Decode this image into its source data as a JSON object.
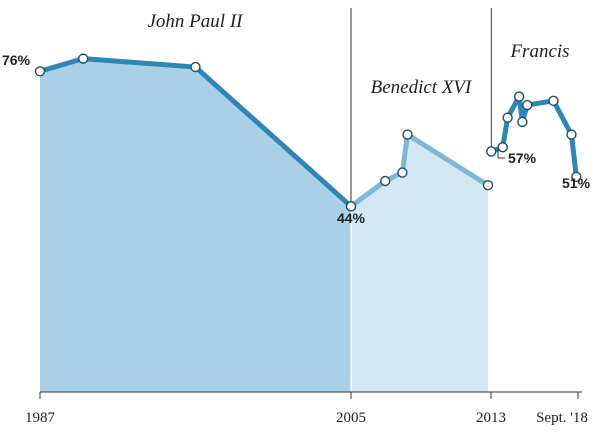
{
  "chart_data": {
    "type": "area",
    "title": "",
    "xlabel": "",
    "ylabel": "",
    "ylim": [
      0,
      100
    ],
    "x_ticks": [
      "1987",
      "2005",
      "2013",
      "Sept. '18"
    ],
    "eras": [
      {
        "name": "John Paul II",
        "start": 1987,
        "end": 2005,
        "color": "#a9d0e6"
      },
      {
        "name": "Benedict XVI",
        "start": 2005,
        "end": 2013.2,
        "color": "#d3e8f3"
      },
      {
        "name": "Francis",
        "start": 2013.2,
        "end": 2018.7,
        "color": "#ffffff"
      }
    ],
    "series": [
      {
        "name": "John Paul II",
        "color": "#2f86b4",
        "points": [
          {
            "x": 1987.0,
            "y": 76
          },
          {
            "x": 1989.5,
            "y": 79
          },
          {
            "x": 1996.0,
            "y": 77
          },
          {
            "x": 2005.0,
            "y": 44
          }
        ]
      },
      {
        "name": "Benedict XVI",
        "color": "#7fb7d6",
        "points": [
          {
            "x": 2005.0,
            "y": 44
          },
          {
            "x": 2007.0,
            "y": 50
          },
          {
            "x": 2008.0,
            "y": 52
          },
          {
            "x": 2008.3,
            "y": 61
          },
          {
            "x": 2013.0,
            "y": 49
          }
        ]
      },
      {
        "name": "Francis",
        "color": "#2f86b4",
        "points": [
          {
            "x": 2013.2,
            "y": 57
          },
          {
            "x": 2013.9,
            "y": 58
          },
          {
            "x": 2014.2,
            "y": 65
          },
          {
            "x": 2014.9,
            "y": 70
          },
          {
            "x": 2015.1,
            "y": 64
          },
          {
            "x": 2015.4,
            "y": 68
          },
          {
            "x": 2017.0,
            "y": 69
          },
          {
            "x": 2018.1,
            "y": 61
          },
          {
            "x": 2018.4,
            "y": 51
          }
        ]
      }
    ],
    "annotations": [
      "76%",
      "44%",
      "57%",
      "51%"
    ]
  }
}
